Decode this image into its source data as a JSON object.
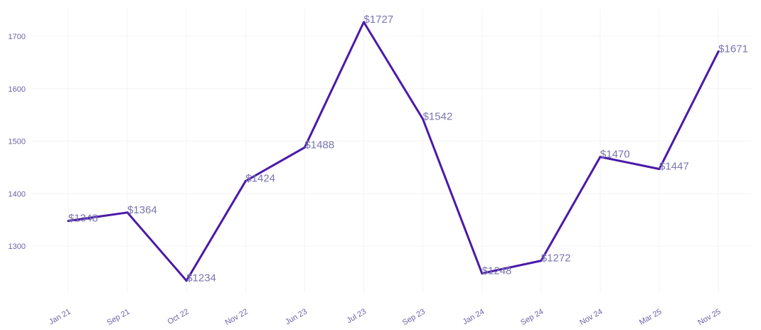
{
  "chart_data": {
    "type": "line",
    "categories": [
      "Jan 21",
      "Sep 21",
      "Oct 22",
      "Nov 22",
      "Jun 23",
      "Jul 23",
      "Sep 23",
      "Jan 24",
      "Sep 24",
      "Nov 24",
      "Mar 25",
      "Nov 25"
    ],
    "values": [
      1348,
      1364,
      1234,
      1424,
      1488,
      1727,
      1542,
      1248,
      1272,
      1470,
      1447,
      1671
    ],
    "data_labels": [
      "$1348",
      "$1364",
      "$1234",
      "$1424",
      "$1488",
      "$1727",
      "$1542",
      "$1248",
      "$1272",
      "$1470",
      "$1447",
      "$1671"
    ],
    "title": "",
    "xlabel": "",
    "ylabel": "",
    "yticks": [
      "1300",
      "1400",
      "1500",
      "1600",
      "1700"
    ],
    "ylim": [
      1210,
      1755
    ],
    "grid": true,
    "legend": "none",
    "colors": {
      "line": "#4a1aa8",
      "labels": "#7a75b0",
      "ticks": "#6b64a6",
      "grid": "#f4f4f6"
    }
  }
}
